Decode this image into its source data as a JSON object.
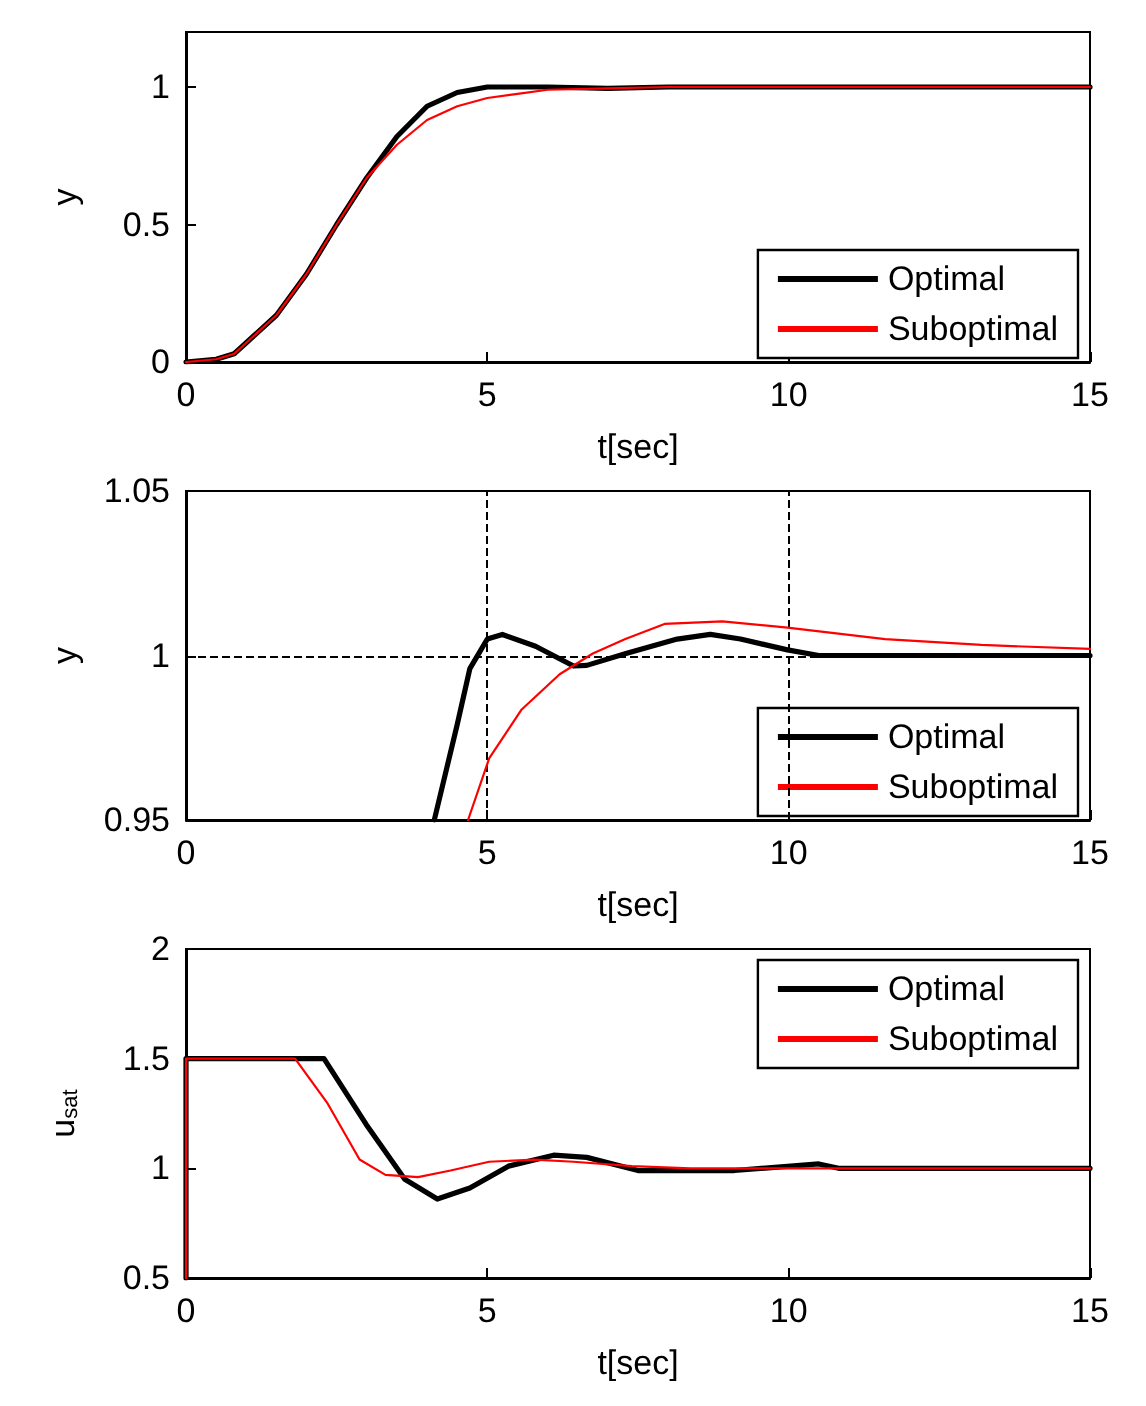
{
  "chart_data": [
    {
      "type": "line",
      "xlabel": "t[sec]",
      "ylabel": "y",
      "xlim": [
        0,
        15
      ],
      "xticks": [
        0,
        5,
        10,
        15
      ],
      "ylim": [
        0,
        1.2
      ],
      "yticks": [
        0,
        0.5,
        1
      ],
      "grid": false,
      "legend": "bottom right",
      "marker": "none",
      "line_style": "solid",
      "series": [
        {
          "name": "Optimal",
          "color": "#000000",
          "x": [
            0,
            0.5,
            0.8,
            1,
            1.5,
            2,
            2.5,
            3,
            3.5,
            4,
            4.5,
            5,
            6,
            7,
            8,
            15
          ],
          "values": [
            0,
            0.01,
            0.03,
            0.07,
            0.17,
            0.32,
            0.5,
            0.67,
            0.82,
            0.93,
            0.98,
            1,
            1,
            0.995,
            1,
            1
          ]
        },
        {
          "name": "Suboptimal",
          "color": "#ff0000",
          "x": [
            0,
            0.5,
            0.8,
            1,
            1.5,
            2,
            2.5,
            3,
            3.5,
            4,
            4.5,
            5,
            5.5,
            6,
            7,
            8,
            15
          ],
          "values": [
            0,
            0.01,
            0.03,
            0.07,
            0.17,
            0.32,
            0.5,
            0.67,
            0.79,
            0.88,
            0.93,
            0.96,
            0.975,
            0.99,
            0.995,
            1,
            1
          ]
        }
      ]
    },
    {
      "type": "line",
      "xlabel": "t[sec]",
      "ylabel": "y",
      "xlim": [
        0,
        15
      ],
      "xticks": [
        0,
        5,
        10,
        15
      ],
      "ylim": [
        0.95,
        1.05
      ],
      "yticks": [
        0.95,
        1,
        1.05
      ],
      "grid": false,
      "legend": "bottom right",
      "marker": "none",
      "line_style": "solid",
      "ref_lines": [
        {
          "axis": "x",
          "value": 5,
          "color": "#000000",
          "line_style": "dashed"
        },
        {
          "axis": "x",
          "value": 10,
          "color": "#000000",
          "line_style": "dashed"
        },
        {
          "axis": "y",
          "value": 1,
          "color": "#000000",
          "line_style": "dashed"
        }
      ],
      "series": [
        {
          "name": "Optimal",
          "color": "#000000",
          "x": [
            4.12,
            4.5,
            4.71,
            5,
            5.25,
            5.8,
            6.43,
            6.65,
            7.3,
            8.15,
            8.7,
            9.2,
            9.98,
            10.5,
            15
          ],
          "values": [
            0.95,
            0.979,
            0.996,
            1.005,
            1.0064,
            1.0028,
            0.9968,
            0.997,
            1.0006,
            1.005,
            1.0064,
            1.005,
            1.0017,
            1,
            1
          ]
        },
        {
          "name": "Suboptimal",
          "color": "#ff0000",
          "x": [
            4.68,
            5.03,
            5.57,
            6.2,
            6.75,
            7.29,
            7.94,
            8.9,
            9.98,
            11.6,
            13.2,
            15
          ],
          "values": [
            0.95,
            0.9687,
            0.9836,
            0.9943,
            1.0006,
            1.005,
            1.0096,
            1.0104,
            1.0085,
            1.005,
            1.0032,
            1.002
          ]
        }
      ]
    },
    {
      "type": "line",
      "xlabel": "t[sec]",
      "ylabel": "u$_{sat}$",
      "xlim": [
        0,
        15
      ],
      "xticks": [
        0,
        5,
        10,
        15
      ],
      "ylim": [
        0.5,
        2
      ],
      "yticks": [
        0.5,
        1,
        1.5,
        2
      ],
      "grid": false,
      "legend": "top right",
      "marker": "none",
      "line_style": "solid",
      "series": [
        {
          "name": "Optimal",
          "color": "#000000",
          "x": [
            0,
            0,
            2.29,
            2.99,
            3.63,
            4.17,
            4.71,
            5.35,
            6.1,
            6.65,
            7.5,
            8.37,
            9.1,
            10.5,
            10.83,
            15
          ],
          "values": [
            0.5,
            1.5,
            1.5,
            1.2,
            0.95,
            0.86,
            0.91,
            1.01,
            1.06,
            1.05,
            0.99,
            0.99,
            0.99,
            1.02,
            1,
            1
          ]
        },
        {
          "name": "Suboptimal",
          "color": "#ff0000",
          "x": [
            0,
            0,
            1.81,
            2.34,
            2.88,
            3.31,
            3.85,
            4.39,
            5.03,
            5.78,
            6.43,
            7.4,
            8.37,
            15
          ],
          "values": [
            0.5,
            1.5,
            1.5,
            1.3,
            1.04,
            0.97,
            0.96,
            0.99,
            1.03,
            1.04,
            1.03,
            1.01,
            1,
            1
          ]
        }
      ]
    }
  ]
}
